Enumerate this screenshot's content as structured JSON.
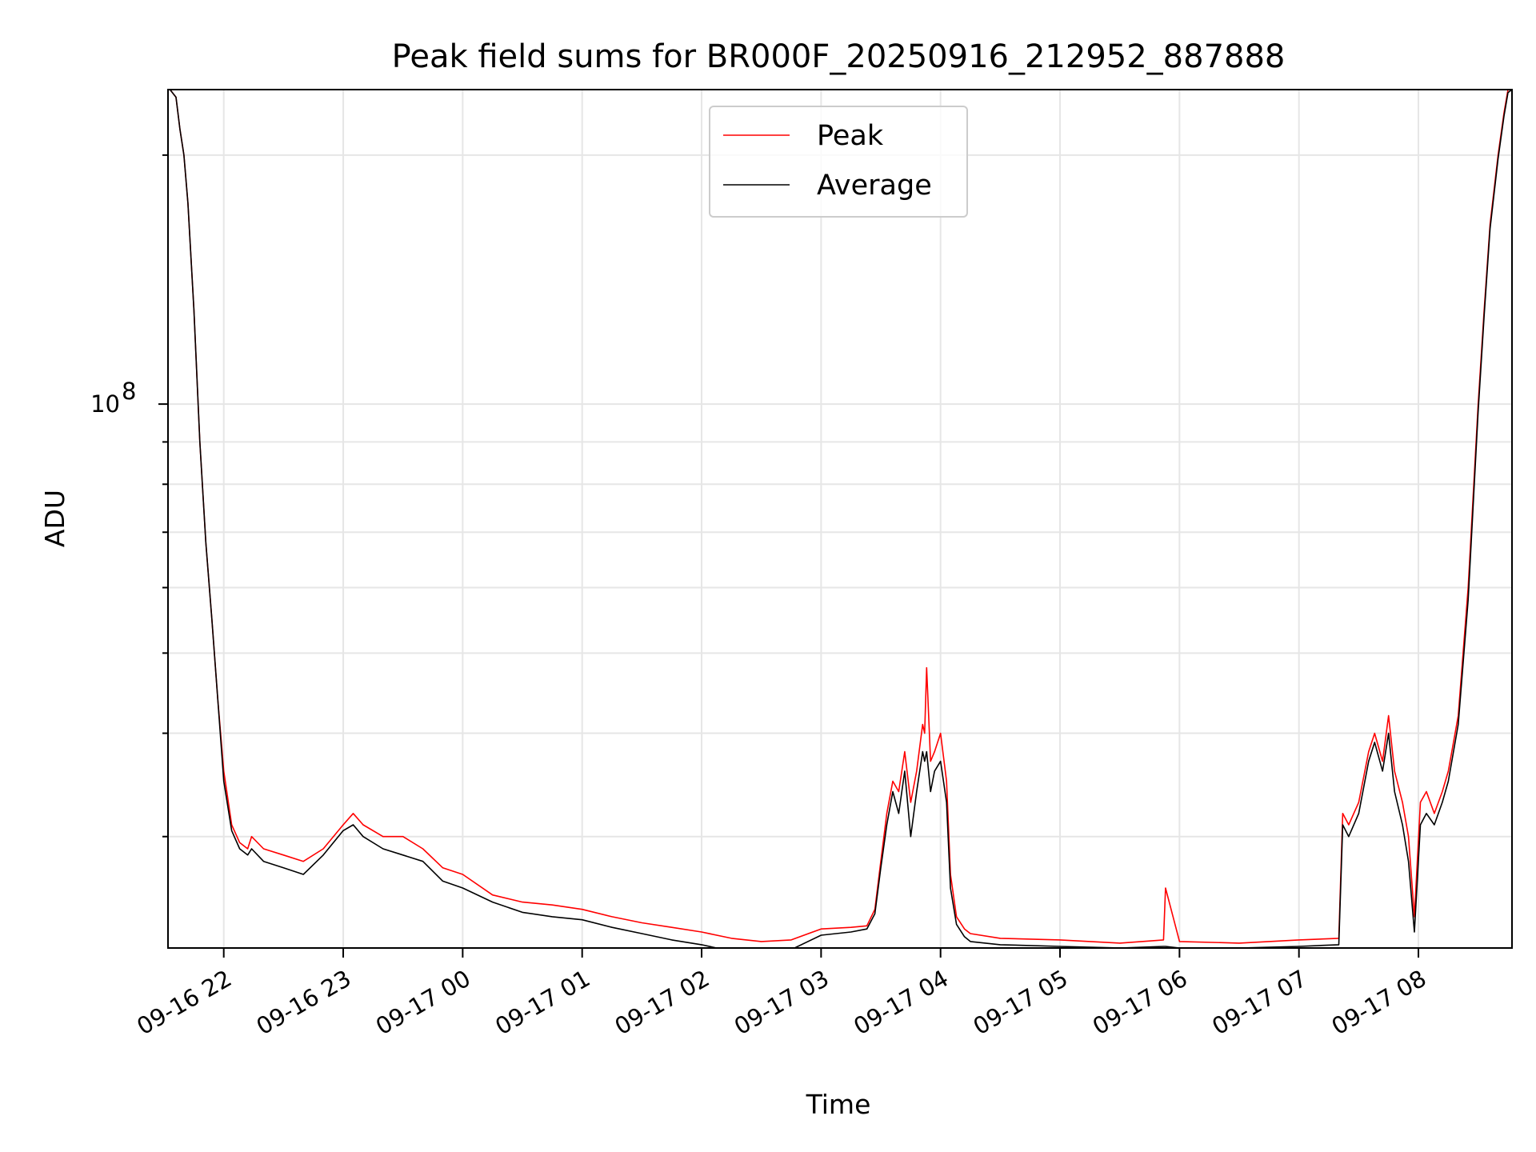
{
  "chart_data": {
    "type": "line",
    "title": "Peak field sums for BR000F_20250916_212952_887888",
    "xlabel": "Time",
    "ylabel": "ADU",
    "y_scale": "log",
    "ylim": [
      22000000,
      240000000
    ],
    "xlim": [
      "2025-09-16 21:32",
      "2025-09-17 08:47"
    ],
    "x_tick_labels": [
      "09-16 22",
      "09-16 23",
      "09-17 00",
      "09-17 01",
      "09-17 02",
      "09-17 03",
      "09-17 04",
      "09-17 05",
      "09-17 06",
      "09-17 07",
      "09-17 08"
    ],
    "y_tick_labels": [
      {
        "base": "10",
        "exponent": "8"
      }
    ],
    "grid": true,
    "legend_position": "upper center",
    "colors": {
      "peak": "#ff0000",
      "average": "#000000"
    },
    "series": [
      {
        "name": "Peak",
        "color": "#ff0000",
        "x": [
          "2025-09-16 21:33",
          "2025-09-16 21:36",
          "2025-09-16 21:38",
          "2025-09-16 21:40",
          "2025-09-16 21:42",
          "2025-09-16 21:45",
          "2025-09-16 21:48",
          "2025-09-16 21:51",
          "2025-09-16 21:54",
          "2025-09-16 21:57",
          "2025-09-16 22:00",
          "2025-09-16 22:04",
          "2025-09-16 22:08",
          "2025-09-16 22:12",
          "2025-09-16 22:14",
          "2025-09-16 22:20",
          "2025-09-16 22:30",
          "2025-09-16 22:40",
          "2025-09-16 22:50",
          "2025-09-16 23:00",
          "2025-09-16 23:05",
          "2025-09-16 23:10",
          "2025-09-16 23:20",
          "2025-09-16 23:30",
          "2025-09-16 23:40",
          "2025-09-16 23:50",
          "2025-09-17 00:00",
          "2025-09-17 00:15",
          "2025-09-17 00:30",
          "2025-09-17 00:45",
          "2025-09-17 01:00",
          "2025-09-17 01:15",
          "2025-09-17 01:30",
          "2025-09-17 01:45",
          "2025-09-17 02:00",
          "2025-09-17 02:15",
          "2025-09-17 02:30",
          "2025-09-17 02:45",
          "2025-09-17 03:00",
          "2025-09-17 03:15",
          "2025-09-17 03:23",
          "2025-09-17 03:27",
          "2025-09-17 03:30",
          "2025-09-17 03:33",
          "2025-09-17 03:36",
          "2025-09-17 03:39",
          "2025-09-17 03:42",
          "2025-09-17 03:45",
          "2025-09-17 03:48",
          "2025-09-17 03:51",
          "2025-09-17 03:52",
          "2025-09-17 03:53",
          "2025-09-17 03:55",
          "2025-09-17 03:57",
          "2025-09-17 04:00",
          "2025-09-17 04:03",
          "2025-09-17 04:05",
          "2025-09-17 04:08",
          "2025-09-17 04:12",
          "2025-09-17 04:15",
          "2025-09-17 04:30",
          "2025-09-17 05:00",
          "2025-09-17 05:30",
          "2025-09-17 05:52",
          "2025-09-17 05:53",
          "2025-09-17 06:00",
          "2025-09-17 06:30",
          "2025-09-17 07:00",
          "2025-09-17 07:20",
          "2025-09-17 07:22",
          "2025-09-17 07:25",
          "2025-09-17 07:30",
          "2025-09-17 07:35",
          "2025-09-17 07:38",
          "2025-09-17 07:42",
          "2025-09-17 07:45",
          "2025-09-17 07:48",
          "2025-09-17 07:52",
          "2025-09-17 07:55",
          "2025-09-17 07:58",
          "2025-09-17 08:01",
          "2025-09-17 08:04",
          "2025-09-17 08:08",
          "2025-09-17 08:12",
          "2025-09-17 08:15",
          "2025-09-17 08:20",
          "2025-09-17 08:25",
          "2025-09-17 08:30",
          "2025-09-17 08:33",
          "2025-09-17 08:36",
          "2025-09-17 08:40",
          "2025-09-17 08:43",
          "2025-09-17 08:45",
          "2025-09-17 08:47"
        ],
        "y": [
          240000000,
          235000000,
          215000000,
          200000000,
          175000000,
          130000000,
          90000000,
          68000000,
          55000000,
          44000000,
          36000000,
          31000000,
          29500000,
          29000000,
          30000000,
          29000000,
          28500000,
          28000000,
          29000000,
          31000000,
          32000000,
          31000000,
          30000000,
          30000000,
          29000000,
          27500000,
          27000000,
          25500000,
          25000000,
          24800000,
          24500000,
          24000000,
          23600000,
          23300000,
          23000000,
          22600000,
          22400000,
          22500000,
          23200000,
          23300000,
          23400000,
          24500000,
          28000000,
          32000000,
          35000000,
          34000000,
          38000000,
          33000000,
          36000000,
          41000000,
          40000000,
          48000000,
          37000000,
          38000000,
          40000000,
          35000000,
          27000000,
          24000000,
          23200000,
          22900000,
          22600000,
          22500000,
          22300000,
          22500000,
          26000000,
          22400000,
          22300000,
          22500000,
          22600000,
          32000000,
          31000000,
          33000000,
          38000000,
          40000000,
          37000000,
          42000000,
          36000000,
          33000000,
          30000000,
          24000000,
          33000000,
          34000000,
          32000000,
          34000000,
          36000000,
          42000000,
          60000000,
          100000000,
          130000000,
          165000000,
          200000000,
          225000000,
          240000000,
          240000000
        ]
      },
      {
        "name": "Average",
        "color": "#000000",
        "x": [
          "2025-09-16 21:33",
          "2025-09-16 21:36",
          "2025-09-16 21:38",
          "2025-09-16 21:40",
          "2025-09-16 21:42",
          "2025-09-16 21:45",
          "2025-09-16 21:48",
          "2025-09-16 21:51",
          "2025-09-16 21:54",
          "2025-09-16 21:57",
          "2025-09-16 22:00",
          "2025-09-16 22:04",
          "2025-09-16 22:08",
          "2025-09-16 22:12",
          "2025-09-16 22:14",
          "2025-09-16 22:20",
          "2025-09-16 22:30",
          "2025-09-16 22:40",
          "2025-09-16 22:50",
          "2025-09-16 23:00",
          "2025-09-16 23:05",
          "2025-09-16 23:10",
          "2025-09-16 23:20",
          "2025-09-16 23:30",
          "2025-09-16 23:40",
          "2025-09-16 23:50",
          "2025-09-17 00:00",
          "2025-09-17 00:15",
          "2025-09-17 00:30",
          "2025-09-17 00:45",
          "2025-09-17 01:00",
          "2025-09-17 01:15",
          "2025-09-17 01:30",
          "2025-09-17 01:45",
          "2025-09-17 02:00",
          "2025-09-17 02:15",
          "2025-09-17 02:30",
          "2025-09-17 02:45",
          "2025-09-17 03:00",
          "2025-09-17 03:15",
          "2025-09-17 03:23",
          "2025-09-17 03:27",
          "2025-09-17 03:30",
          "2025-09-17 03:33",
          "2025-09-17 03:36",
          "2025-09-17 03:39",
          "2025-09-17 03:42",
          "2025-09-17 03:45",
          "2025-09-17 03:48",
          "2025-09-17 03:51",
          "2025-09-17 03:52",
          "2025-09-17 03:53",
          "2025-09-17 03:55",
          "2025-09-17 03:57",
          "2025-09-17 04:00",
          "2025-09-17 04:03",
          "2025-09-17 04:05",
          "2025-09-17 04:08",
          "2025-09-17 04:12",
          "2025-09-17 04:15",
          "2025-09-17 04:30",
          "2025-09-17 05:00",
          "2025-09-17 05:30",
          "2025-09-17 05:52",
          "2025-09-17 05:53",
          "2025-09-17 06:00",
          "2025-09-17 06:30",
          "2025-09-17 07:00",
          "2025-09-17 07:20",
          "2025-09-17 07:22",
          "2025-09-17 07:25",
          "2025-09-17 07:30",
          "2025-09-17 07:35",
          "2025-09-17 07:38",
          "2025-09-17 07:42",
          "2025-09-17 07:45",
          "2025-09-17 07:48",
          "2025-09-17 07:52",
          "2025-09-17 07:55",
          "2025-09-17 07:58",
          "2025-09-17 08:01",
          "2025-09-17 08:04",
          "2025-09-17 08:08",
          "2025-09-17 08:12",
          "2025-09-17 08:15",
          "2025-09-17 08:20",
          "2025-09-17 08:25",
          "2025-09-17 08:30",
          "2025-09-17 08:33",
          "2025-09-17 08:36",
          "2025-09-17 08:40",
          "2025-09-17 08:43",
          "2025-09-17 08:45",
          "2025-09-17 08:47"
        ],
        "y": [
          240000000,
          235000000,
          215000000,
          200000000,
          175000000,
          130000000,
          90000000,
          68000000,
          55000000,
          44000000,
          35000000,
          30500000,
          29000000,
          28500000,
          29000000,
          28000000,
          27500000,
          27000000,
          28500000,
          30500000,
          31000000,
          30000000,
          29000000,
          28500000,
          28000000,
          26500000,
          26000000,
          25000000,
          24300000,
          24000000,
          23800000,
          23300000,
          22900000,
          22500000,
          22200000,
          21800000,
          21700000,
          21900000,
          22800000,
          23000000,
          23200000,
          24200000,
          27500000,
          31000000,
          34000000,
          32000000,
          36000000,
          30000000,
          34000000,
          38000000,
          37000000,
          38000000,
          34000000,
          36000000,
          37000000,
          33000000,
          26000000,
          23500000,
          22700000,
          22400000,
          22200000,
          22100000,
          22000000,
          22100000,
          22100000,
          22000000,
          22000000,
          22100000,
          22200000,
          31000000,
          30000000,
          32000000,
          37000000,
          39000000,
          36000000,
          40000000,
          34000000,
          31000000,
          28000000,
          23000000,
          31000000,
          32000000,
          31000000,
          33000000,
          35000000,
          41000000,
          58000000,
          98000000,
          128000000,
          163000000,
          198000000,
          223000000,
          238000000,
          240000000
        ]
      }
    ]
  }
}
